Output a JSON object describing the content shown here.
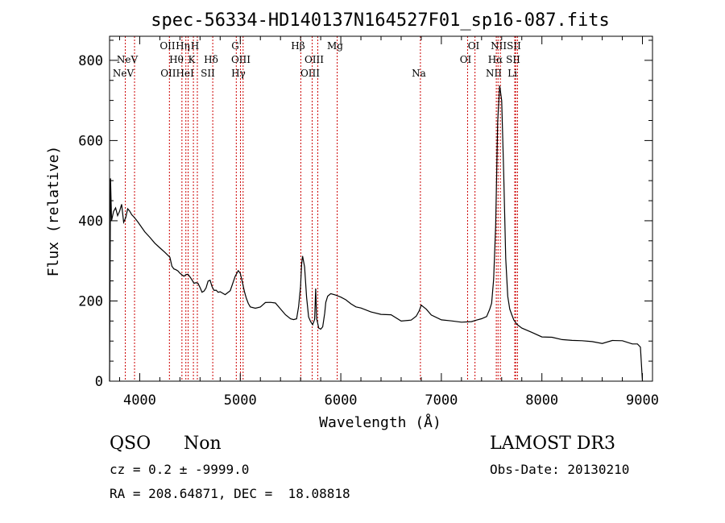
{
  "chart_data": {
    "type": "line",
    "title": "spec-56334-HD140137N164527F01_sp16-087.fits",
    "xlabel": "Wavelength (Å)",
    "ylabel": "Flux (relative)",
    "xlim": [
      3700,
      9100
    ],
    "ylim": [
      0,
      860
    ],
    "xticks": [
      "4000",
      "5000",
      "6000",
      "7000",
      "8000",
      "9000"
    ],
    "yticks": [
      "0",
      "200",
      "400",
      "600",
      "800"
    ],
    "xtick_values": [
      4000,
      5000,
      6000,
      7000,
      8000,
      9000
    ],
    "ytick_values": [
      0,
      200,
      400,
      600,
      800
    ],
    "series": [
      {
        "name": "spectrum",
        "x": [
          3700,
          3710,
          3720,
          3740,
          3760,
          3780,
          3800,
          3820,
          3840,
          3860,
          3880,
          3900,
          3920,
          3940,
          3960,
          3980,
          4000,
          4050,
          4100,
          4150,
          4200,
          4250,
          4300,
          4320,
          4340,
          4360,
          4380,
          4400,
          4420,
          4440,
          4460,
          4480,
          4500,
          4520,
          4540,
          4560,
          4580,
          4600,
          4620,
          4640,
          4660,
          4680,
          4700,
          4720,
          4740,
          4760,
          4780,
          4800,
          4850,
          4900,
          4950,
          4980,
          5000,
          5020,
          5040,
          5060,
          5080,
          5100,
          5150,
          5200,
          5250,
          5300,
          5350,
          5400,
          5450,
          5500,
          5530,
          5560,
          5580,
          5600,
          5610,
          5620,
          5640,
          5660,
          5680,
          5700,
          5720,
          5740,
          5750,
          5760,
          5770,
          5780,
          5800,
          5820,
          5840,
          5850,
          5870,
          5900,
          5950,
          6000,
          6050,
          6100,
          6150,
          6200,
          6300,
          6400,
          6500,
          6600,
          6700,
          6750,
          6780,
          6800,
          6850,
          6900,
          7000,
          7100,
          7200,
          7300,
          7350,
          7400,
          7450,
          7480,
          7500,
          7520,
          7540,
          7560,
          7580,
          7600,
          7620,
          7640,
          7660,
          7680,
          7700,
          7720,
          7750,
          7800,
          7900,
          8000,
          8100,
          8200,
          8300,
          8400,
          8500,
          8600,
          8700,
          8800,
          8900,
          8950,
          8980,
          9000
        ],
        "values": [
          0,
          500,
          400,
          420,
          430,
          410,
          420,
          440,
          400,
          410,
          430,
          425,
          420,
          410,
          405,
          395,
          385,
          370,
          355,
          342,
          328,
          318,
          305,
          290,
          285,
          282,
          278,
          275,
          270,
          265,
          260,
          262,
          258,
          250,
          243,
          242,
          238,
          228,
          225,
          226,
          235,
          250,
          255,
          240,
          228,
          222,
          220,
          220,
          215,
          225,
          260,
          275,
          270,
          250,
          228,
          208,
          197,
          190,
          186,
          190,
          195,
          196,
          190,
          180,
          165,
          155,
          150,
          160,
          190,
          240,
          295,
          315,
          290,
          215,
          165,
          145,
          140,
          150,
          230,
          155,
          140,
          130,
          135,
          140,
          175,
          200,
          215,
          222,
          218,
          210,
          198,
          192,
          182,
          178,
          168,
          162,
          160,
          155,
          158,
          165,
          180,
          190,
          185,
          170,
          150,
          145,
          145,
          145,
          148,
          150,
          160,
          175,
          200,
          260,
          390,
          650,
          740,
          700,
          520,
          300,
          210,
          175,
          160,
          152,
          142,
          128,
          120,
          115,
          110,
          108,
          105,
          102,
          100,
          100,
          98,
          96,
          92,
          88,
          80,
          0
        ]
      }
    ],
    "lines": [
      {
        "wave": 3346,
        "row": 2,
        "label": "NeV"
      },
      {
        "wave": 3426,
        "row": 1,
        "label": "NeV"
      },
      {
        "wave": 3727,
        "row": 0,
        "label": "OII"
      },
      {
        "wave": 3835,
        "row": 1,
        "label": "Hη"
      },
      {
        "wave": 3869,
        "row": 2,
        "label": "NeIII"
      },
      {
        "wave": 3889,
        "row": 0,
        "label": "Hζ"
      },
      {
        "wave": 3934,
        "row": 2,
        "label": "CaII K"
      },
      {
        "wave": 3968,
        "row": 0,
        "label": "CaII H"
      },
      {
        "wave": 4101,
        "row": 1,
        "label": "Hδ"
      },
      {
        "wave": 4304,
        "row": 0,
        "label": "G"
      },
      {
        "wave": 4340,
        "row": 2,
        "label": "Hγ"
      },
      {
        "wave": 4363,
        "row": 1,
        "label": "OIII"
      },
      {
        "wave": 4861,
        "row": 0,
        "label": "Hβ"
      },
      {
        "wave": 4959,
        "row": 1,
        "label": "OIII"
      },
      {
        "wave": 5007,
        "row": 2,
        "label": "OIII"
      },
      {
        "wave": 5175,
        "row": 0,
        "label": "Mg"
      },
      {
        "wave": 5893,
        "row": 2,
        "label": "Na"
      },
      {
        "wave": 6300,
        "row": 1,
        "label": "OI"
      },
      {
        "wave": 6364,
        "row": 0,
        "label": "OI"
      },
      {
        "wave": 6548,
        "row": 2,
        "label": "NII"
      },
      {
        "wave": 6563,
        "row": 1,
        "label": "Hα"
      },
      {
        "wave": 6583,
        "row": 0,
        "label": "NII"
      },
      {
        "wave": 6707,
        "row": 2,
        "label": "Li"
      },
      {
        "wave": 6716,
        "row": 1,
        "label": "SII"
      },
      {
        "wave": 6731,
        "row": 0,
        "label": "SII"
      }
    ],
    "line_labels": {
      "row0": [
        "OII",
        "Hη",
        "H",
        "G",
        "Hβ",
        "Mg",
        "OI",
        "NIISII"
      ],
      "row1": [
        "NeV",
        "Hθ",
        "K",
        "Hδ",
        "OIII",
        "OIII",
        "OI",
        "Hα",
        "SII"
      ],
      "row2": [
        "NeV",
        "OIIHeI",
        "SII",
        "Hγ",
        "OIII",
        "Na",
        "NII",
        "Li"
      ]
    }
  },
  "info": {
    "class": "QSO",
    "subclass": "Non",
    "survey": "LAMOST DR3",
    "cz": "cz = 0.2 ± -9999.0",
    "obs_date": "Obs-Date: 20130210",
    "radec": "RA = 208.64871, DEC =  18.08818"
  },
  "colors": {
    "line_marker": "#cc0000",
    "spectrum": "#000000"
  }
}
